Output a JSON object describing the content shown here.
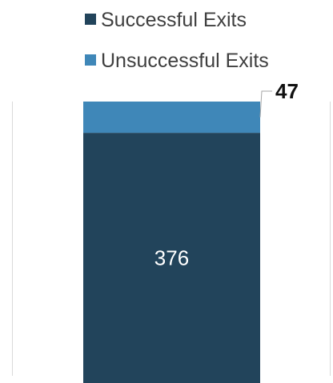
{
  "chart_data": {
    "type": "bar",
    "stacked": true,
    "categories": [
      ""
    ],
    "series": [
      {
        "name": "Successful Exits",
        "values": [
          376
        ],
        "color": "#22445b"
      },
      {
        "name": "Unsuccessful Exits",
        "values": [
          47
        ],
        "color": "#3f87b8"
      }
    ],
    "data_labels": [
      "376",
      "47"
    ],
    "legend_position": "top",
    "ylim": [
      0,
      423
    ],
    "grid": false
  }
}
